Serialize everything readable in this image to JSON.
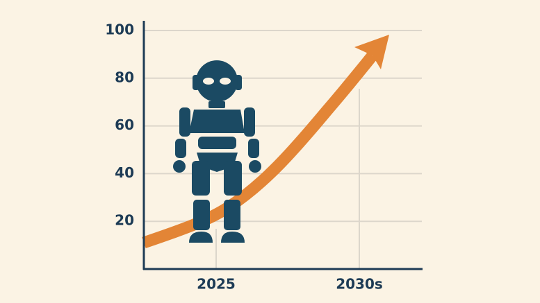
{
  "chart_data": {
    "type": "line",
    "categories": [
      "2025",
      "2030s"
    ],
    "ylim": [
      0,
      100
    ],
    "yticks": [
      20,
      40,
      60,
      80,
      100
    ],
    "grid": true,
    "color": "#e38536"
  }
}
